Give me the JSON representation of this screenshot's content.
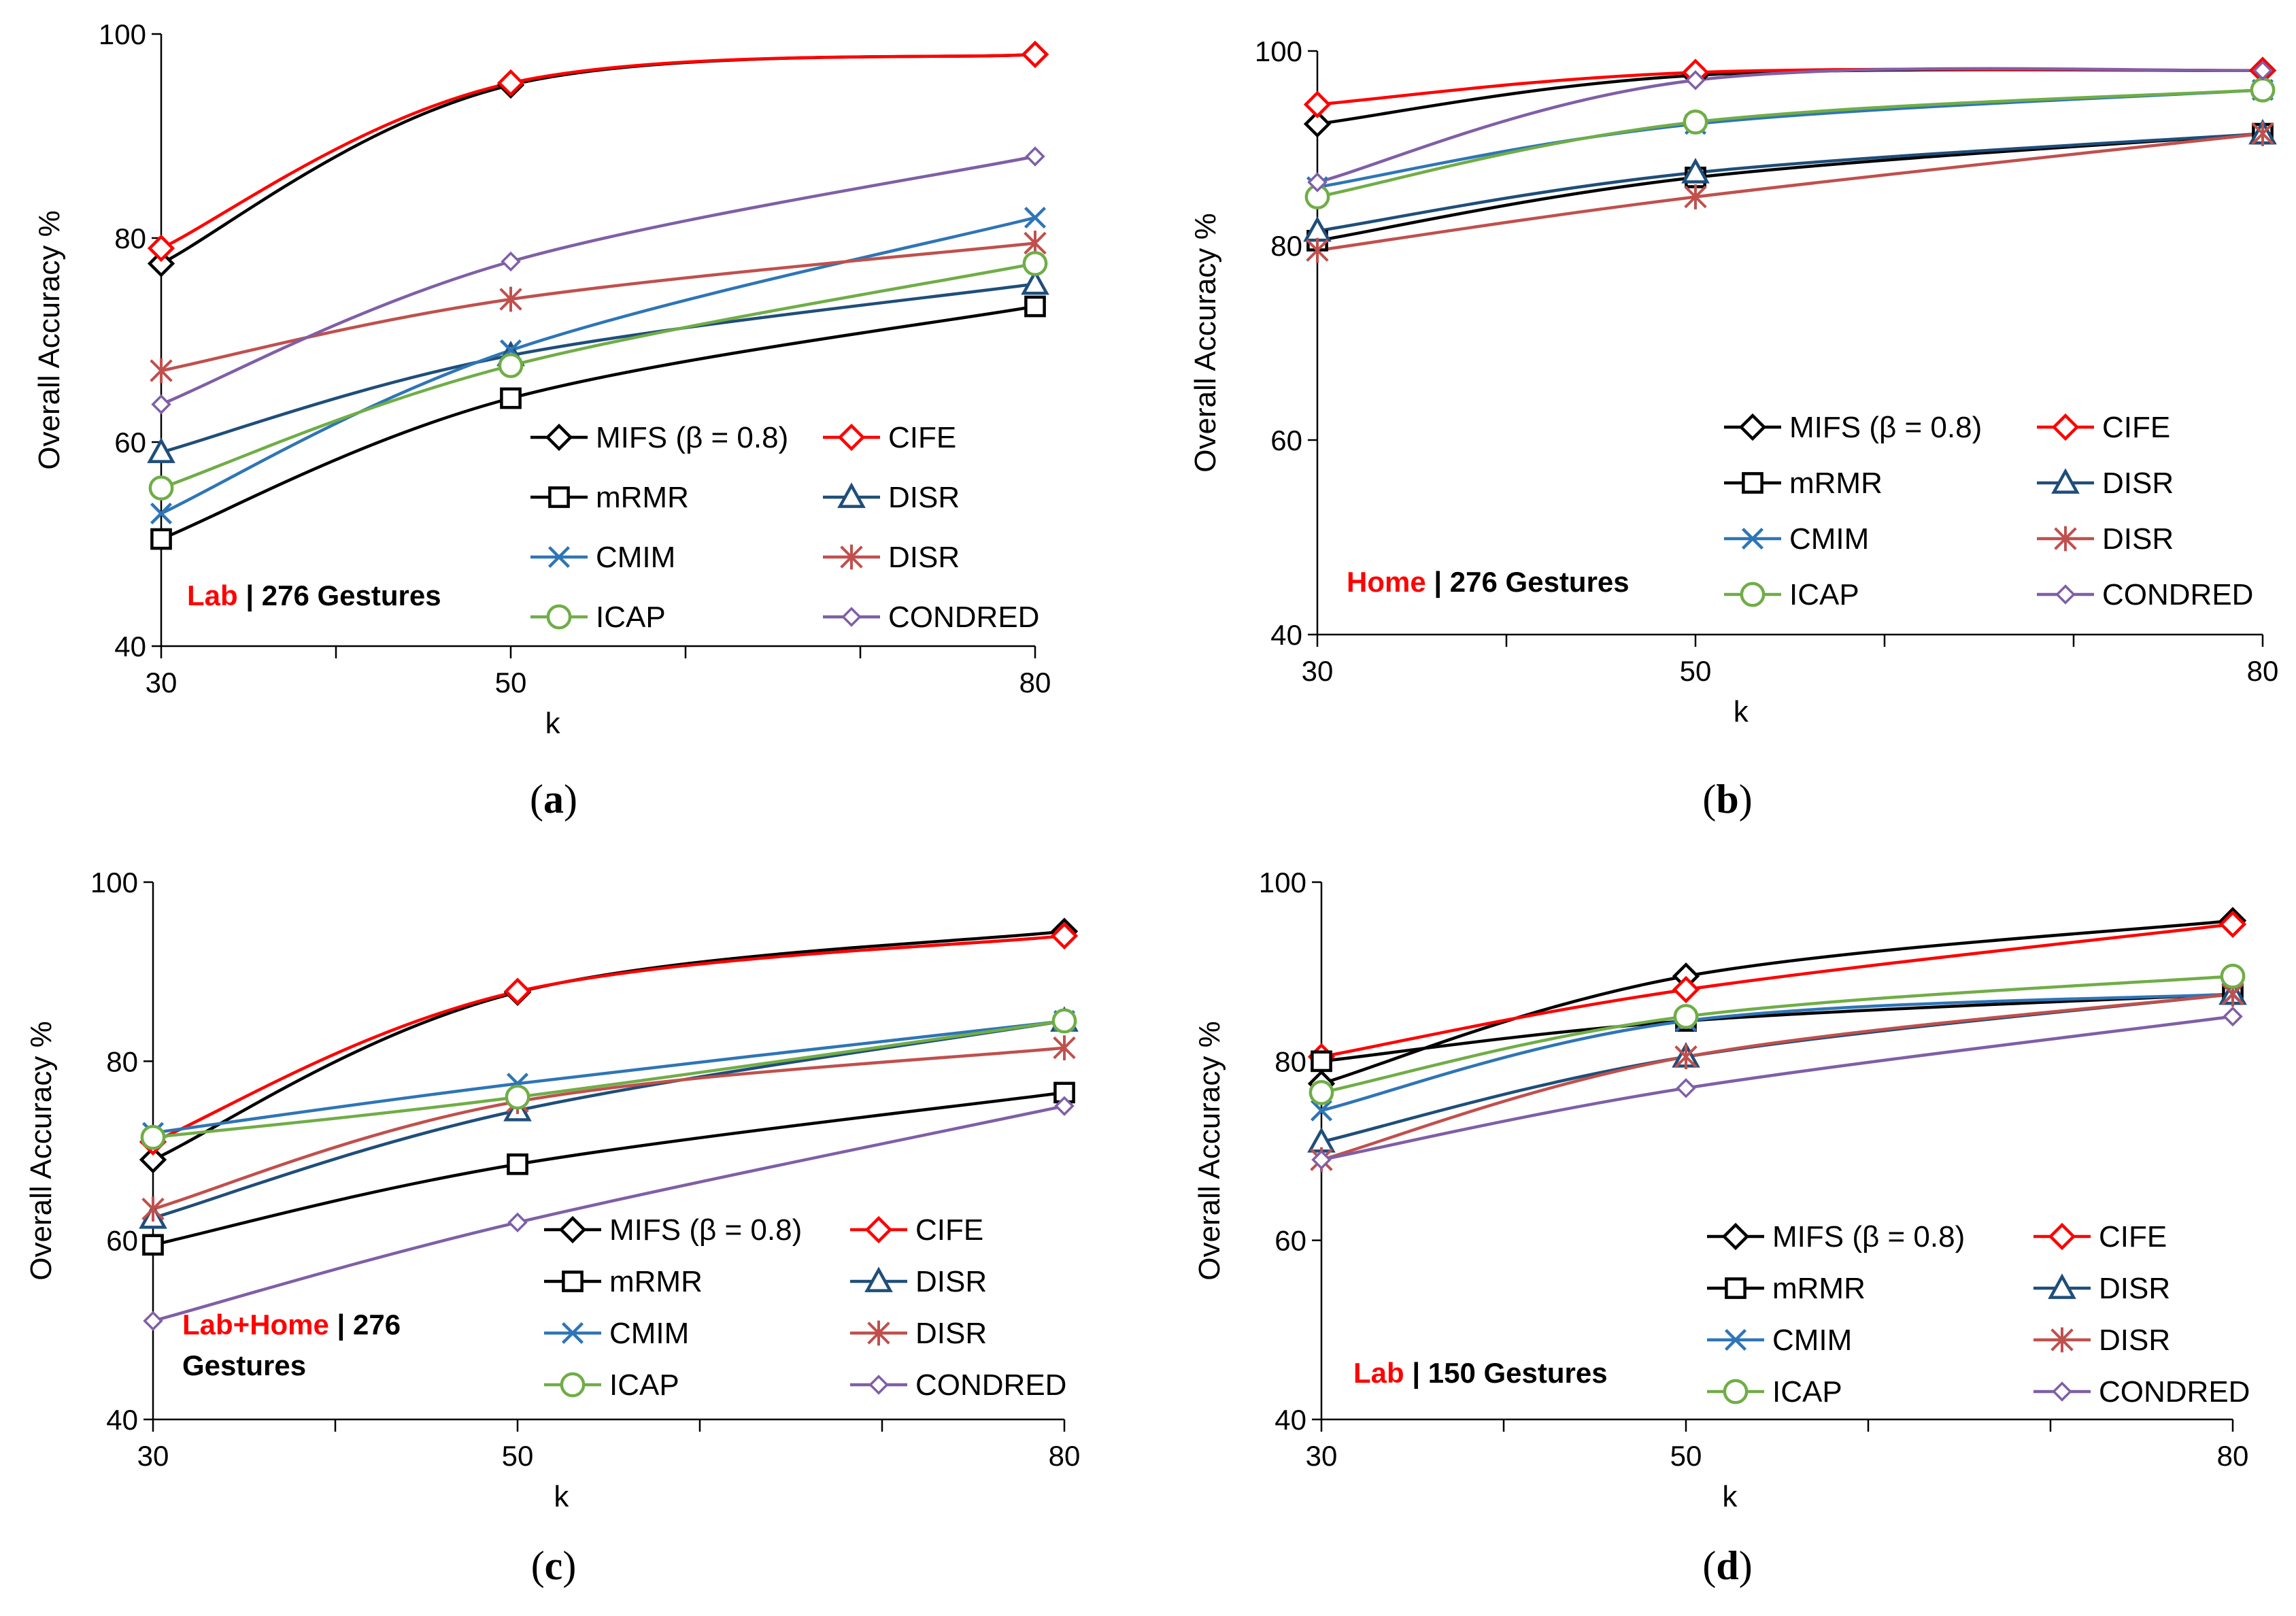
{
  "chart_data": [
    {
      "type": "line",
      "panel_label": "a",
      "x": [
        30,
        50,
        80
      ],
      "xlabel": "k",
      "ylabel": "Overall Accuracy %",
      "ylim": [
        40,
        100
      ],
      "yticks": [
        40,
        60,
        80,
        100
      ],
      "annotation": [
        {
          "text": "Lab",
          "color": "#ff0000"
        },
        {
          "text": " | 276 Gestures",
          "color": "#000000"
        }
      ],
      "series": [
        {
          "name": "MIFS (β = 0.8)",
          "color": "#000000",
          "marker": "diamond",
          "values": [
            77.5,
            95.0,
            98.0
          ]
        },
        {
          "name": "CIFE",
          "color": "#ff0000",
          "marker": "diamond",
          "values": [
            79.0,
            95.2,
            98.0
          ]
        },
        {
          "name": "mRMR",
          "color": "#000000",
          "marker": "square",
          "values": [
            50.5,
            64.3,
            73.3
          ]
        },
        {
          "name": "DISR",
          "color": "#1f4e79",
          "marker": "triangle",
          "values": [
            59.0,
            68.5,
            75.5
          ]
        },
        {
          "name": "CMIM",
          "color": "#2e75b6",
          "marker": "x",
          "values": [
            53.0,
            69.0,
            82.0
          ]
        },
        {
          "name": "DISR",
          "color": "#c0504d",
          "marker": "star",
          "values": [
            67.0,
            74.0,
            79.5
          ]
        },
        {
          "name": "ICAP",
          "color": "#70ad47",
          "marker": "circle",
          "values": [
            55.5,
            67.5,
            77.5
          ]
        },
        {
          "name": "CONDRED",
          "color": "#7f5fa6",
          "marker": "smalldiamond",
          "values": [
            63.7,
            77.7,
            88.0
          ]
        }
      ]
    },
    {
      "type": "line",
      "panel_label": "b",
      "x": [
        30,
        50,
        80
      ],
      "xlabel": "k",
      "ylabel": "Overall Accuracy %",
      "ylim": [
        40,
        100
      ],
      "yticks": [
        40,
        60,
        80,
        100
      ],
      "annotation": [
        {
          "text": "Home",
          "color": "#ff0000"
        },
        {
          "text": " | 276 Gestures",
          "color": "#000000"
        }
      ],
      "series": [
        {
          "name": "MIFS (β = 0.8)",
          "color": "#000000",
          "marker": "diamond",
          "values": [
            92.5,
            97.5,
            98.0
          ]
        },
        {
          "name": "CIFE",
          "color": "#ff0000",
          "marker": "diamond",
          "values": [
            94.5,
            97.8,
            98.0
          ]
        },
        {
          "name": "mRMR",
          "color": "#000000",
          "marker": "square",
          "values": [
            80.5,
            87.0,
            91.5
          ]
        },
        {
          "name": "DISR",
          "color": "#1f4e79",
          "marker": "triangle",
          "values": [
            81.5,
            87.5,
            91.5
          ]
        },
        {
          "name": "CMIM",
          "color": "#2e75b6",
          "marker": "x",
          "values": [
            86.0,
            92.5,
            96.0
          ]
        },
        {
          "name": "DISR",
          "color": "#c0504d",
          "marker": "star",
          "values": [
            79.5,
            85.0,
            91.5
          ]
        },
        {
          "name": "ICAP",
          "color": "#70ad47",
          "marker": "circle",
          "values": [
            85.0,
            92.7,
            96.0
          ]
        },
        {
          "name": "CONDRED",
          "color": "#7f5fa6",
          "marker": "smalldiamond",
          "values": [
            86.5,
            97.0,
            98.0
          ]
        }
      ]
    },
    {
      "type": "line",
      "panel_label": "c",
      "x": [
        30,
        50,
        80
      ],
      "xlabel": "k",
      "ylabel": "Overall Accuracy %",
      "ylim": [
        40,
        100
      ],
      "yticks": [
        40,
        60,
        80,
        100
      ],
      "annotation": [
        {
          "text": "Lab+Home",
          "color": "#ff0000"
        },
        {
          "text": " | 276",
          "color": "#000000"
        },
        {
          "text": "Gestures",
          "color": "#000000"
        }
      ],
      "series": [
        {
          "name": "MIFS (β = 0.8)",
          "color": "#000000",
          "marker": "diamond",
          "values": [
            69.0,
            87.7,
            94.5
          ]
        },
        {
          "name": "CIFE",
          "color": "#ff0000",
          "marker": "diamond",
          "values": [
            71.0,
            87.8,
            94.0
          ]
        },
        {
          "name": "mRMR",
          "color": "#000000",
          "marker": "square",
          "values": [
            59.5,
            68.5,
            76.5
          ]
        },
        {
          "name": "DISR",
          "color": "#1f4e79",
          "marker": "triangle",
          "values": [
            62.5,
            74.5,
            84.5
          ]
        },
        {
          "name": "CMIM",
          "color": "#2e75b6",
          "marker": "x",
          "values": [
            72.0,
            77.5,
            84.5
          ]
        },
        {
          "name": "DISR",
          "color": "#c0504d",
          "marker": "star",
          "values": [
            63.5,
            75.5,
            81.5
          ]
        },
        {
          "name": "ICAP",
          "color": "#70ad47",
          "marker": "circle",
          "values": [
            71.5,
            76.0,
            84.5
          ]
        },
        {
          "name": "CONDRED",
          "color": "#7f5fa6",
          "marker": "smalldiamond",
          "values": [
            51.0,
            62.0,
            75.0
          ]
        }
      ]
    },
    {
      "type": "line",
      "panel_label": "d",
      "x": [
        30,
        50,
        80
      ],
      "xlabel": "k",
      "ylabel": "Overall Accuracy %",
      "ylim": [
        40,
        100
      ],
      "yticks": [
        40,
        60,
        80,
        100
      ],
      "annotation": [
        {
          "text": "Lab",
          "color": "#ff0000"
        },
        {
          "text": " | 150 Gestures",
          "color": "#000000"
        }
      ],
      "series": [
        {
          "name": "MIFS (β = 0.8)",
          "color": "#000000",
          "marker": "diamond",
          "values": [
            77.5,
            89.5,
            95.7
          ]
        },
        {
          "name": "CIFE",
          "color": "#ff0000",
          "marker": "diamond",
          "values": [
            80.5,
            88.0,
            95.3
          ]
        },
        {
          "name": "mRMR",
          "color": "#000000",
          "marker": "square",
          "values": [
            80.0,
            84.5,
            87.5
          ]
        },
        {
          "name": "DISR",
          "color": "#1f4e79",
          "marker": "triangle",
          "values": [
            71.0,
            80.5,
            87.5
          ]
        },
        {
          "name": "CMIM",
          "color": "#2e75b6",
          "marker": "x",
          "values": [
            74.5,
            84.5,
            87.5
          ]
        },
        {
          "name": "DISR",
          "color": "#c0504d",
          "marker": "star",
          "values": [
            69.0,
            80.5,
            87.5
          ]
        },
        {
          "name": "ICAP",
          "color": "#70ad47",
          "marker": "circle",
          "values": [
            76.5,
            85.0,
            89.5
          ]
        },
        {
          "name": "CONDRED",
          "color": "#7f5fa6",
          "marker": "smalldiamond",
          "values": [
            69.0,
            77.0,
            85.0
          ]
        }
      ]
    }
  ]
}
